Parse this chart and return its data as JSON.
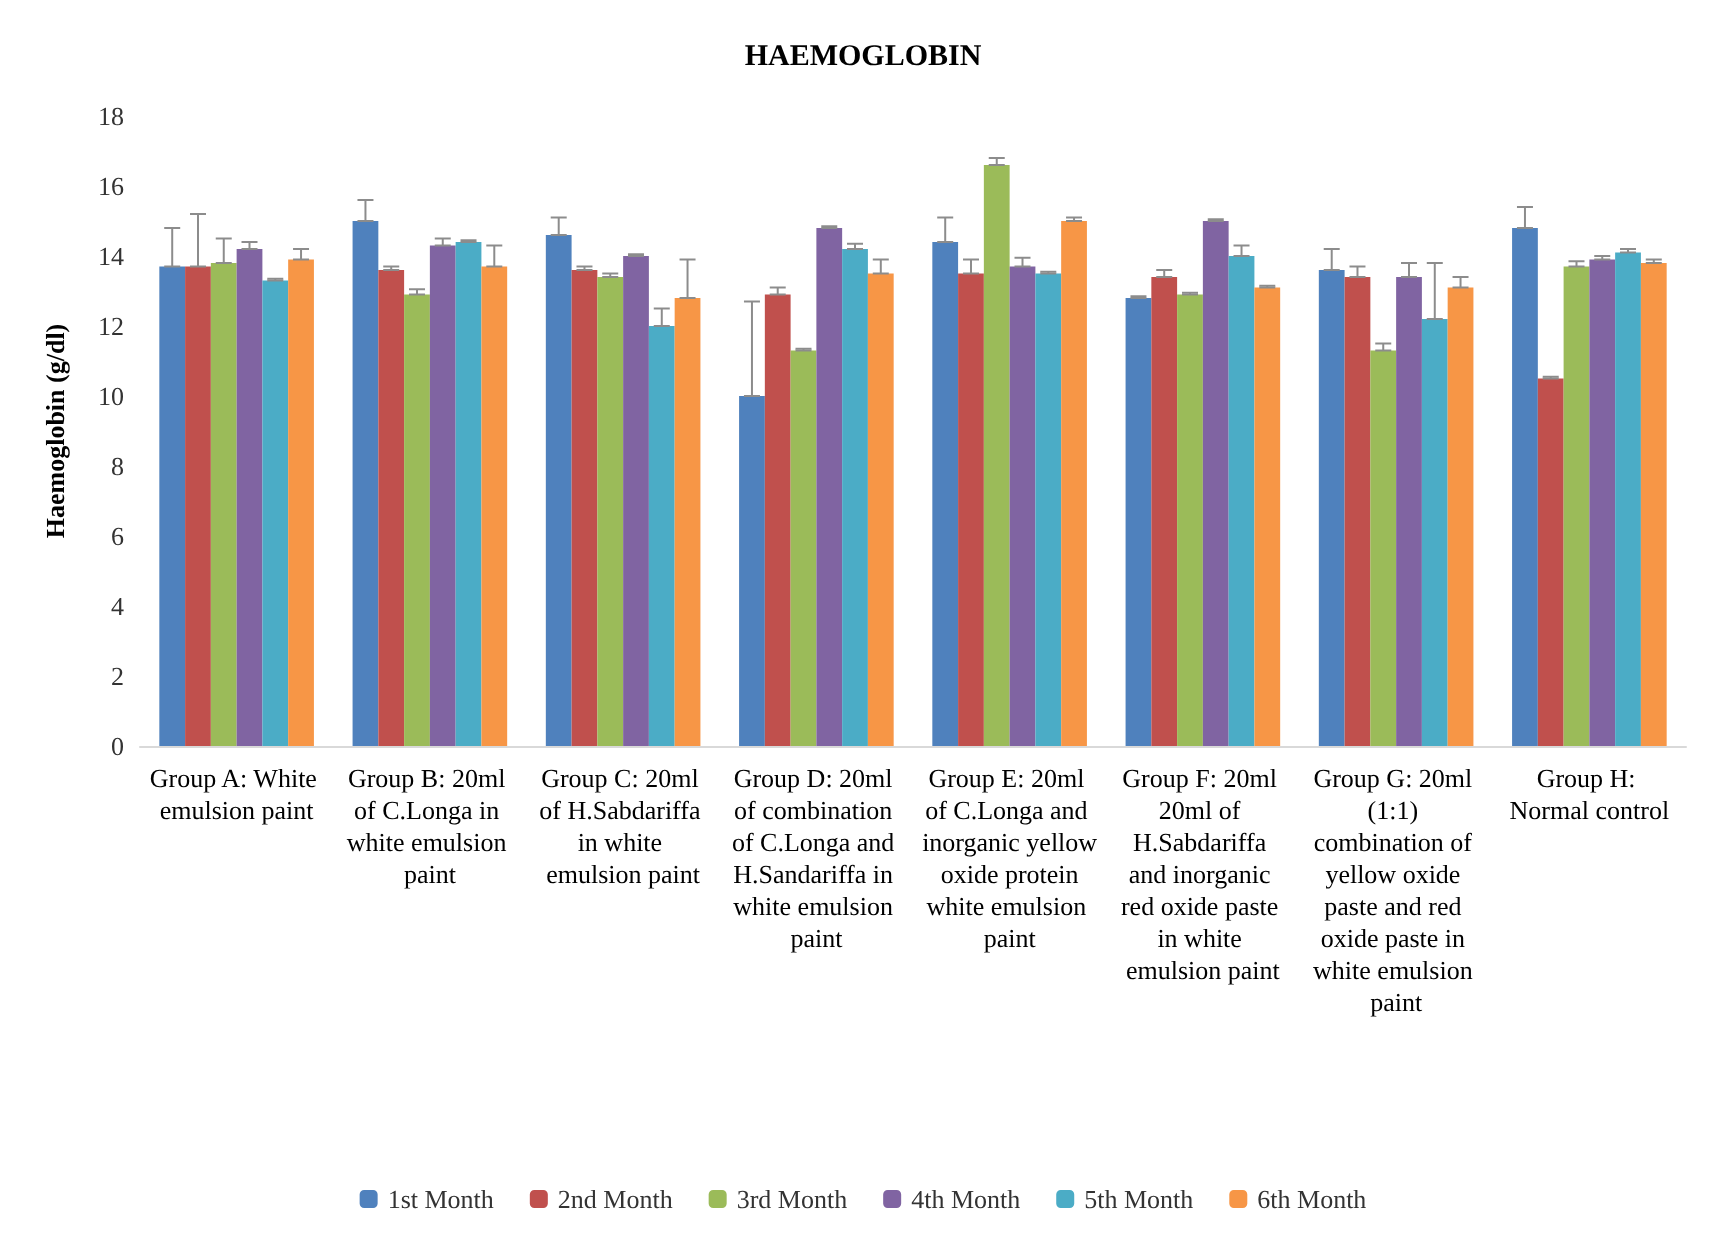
{
  "chart_data": {
    "type": "bar",
    "title": "HAEMOGLOBIN",
    "ylabel": "Haemoglobin (g/dl)",
    "categories": [
      "Group A: White emulsion paint",
      "Group B: 20ml of C.Longa in white emulsion paint",
      "Group C: 20ml of H.Sabdariffa in white emulsion paint",
      "Group D: 20ml of combination of C.Longa and H.Sandariffa in white emulsion paint",
      "Group E: 20ml of C.Longa and inorganic yellow oxide protein white emulsion paint",
      "Group F: 20ml 20ml of H.Sabdariffa and inorganic red oxide paste in white emulsion paint",
      "Group G: 20ml (1:1) combination of yellow oxide paste and red oxide paste in white emulsion paint",
      "Group H: Normal control"
    ],
    "series": [
      {
        "name": "1st Month",
        "color": "#4f81bd",
        "values": [
          13.7,
          15.0,
          14.6,
          10.0,
          14.4,
          12.8,
          13.6,
          14.8
        ],
        "errors": [
          [
            13.7,
            14.8
          ],
          [
            15.0,
            15.6
          ],
          [
            14.6,
            15.1
          ],
          [
            10.0,
            12.7
          ],
          [
            14.4,
            15.1
          ],
          [
            12.8,
            12.85
          ],
          [
            13.6,
            14.2
          ],
          [
            14.8,
            15.4
          ]
        ]
      },
      {
        "name": "2nd Month",
        "color": "#c0504d",
        "values": [
          13.7,
          13.6,
          13.6,
          12.9,
          13.5,
          13.4,
          13.4,
          10.5
        ],
        "errors": [
          [
            13.7,
            15.2
          ],
          [
            13.6,
            13.7
          ],
          [
            13.6,
            13.7
          ],
          [
            12.9,
            13.1
          ],
          [
            13.5,
            13.9
          ],
          [
            13.4,
            13.6
          ],
          [
            13.4,
            13.7
          ],
          [
            10.5,
            10.55
          ]
        ]
      },
      {
        "name": "3rd Month",
        "color": "#9bbb59",
        "values": [
          13.8,
          12.9,
          13.4,
          11.3,
          16.6,
          12.9,
          11.3,
          13.7
        ],
        "errors": [
          [
            13.8,
            14.5
          ],
          [
            12.9,
            13.05
          ],
          [
            13.4,
            13.5
          ],
          [
            11.3,
            11.35
          ],
          [
            16.6,
            16.8
          ],
          [
            12.9,
            12.95
          ],
          [
            11.3,
            11.5
          ],
          [
            13.7,
            13.85
          ]
        ]
      },
      {
        "name": "4th Month",
        "color": "#8064a2",
        "values": [
          14.2,
          14.3,
          14.0,
          14.8,
          13.7,
          15.0,
          13.4,
          13.9
        ],
        "errors": [
          [
            14.2,
            14.4
          ],
          [
            14.3,
            14.5
          ],
          [
            14.0,
            14.05
          ],
          [
            14.8,
            14.85
          ],
          [
            13.7,
            13.95
          ],
          [
            15.0,
            15.05
          ],
          [
            13.4,
            13.8
          ],
          [
            13.9,
            14.0
          ]
        ]
      },
      {
        "name": "5th Month",
        "color": "#4bacc6",
        "values": [
          13.3,
          14.4,
          12.0,
          14.2,
          13.5,
          14.0,
          12.2,
          14.1
        ],
        "errors": [
          [
            13.3,
            13.35
          ],
          [
            14.4,
            14.45
          ],
          [
            12.0,
            12.5
          ],
          [
            14.2,
            14.35
          ],
          [
            13.5,
            13.55
          ],
          [
            14.0,
            14.3
          ],
          [
            12.2,
            13.8
          ],
          [
            14.1,
            14.2
          ]
        ]
      },
      {
        "name": "6th Month",
        "color": "#f79646",
        "values": [
          13.9,
          13.7,
          12.8,
          13.5,
          15.0,
          13.1,
          13.1,
          13.8
        ],
        "errors": [
          [
            13.9,
            14.2
          ],
          [
            13.7,
            14.3
          ],
          [
            12.8,
            13.9
          ],
          [
            13.5,
            13.9
          ],
          [
            15.0,
            15.1
          ],
          [
            13.1,
            13.15
          ],
          [
            13.1,
            13.4
          ],
          [
            13.8,
            13.9
          ]
        ]
      }
    ],
    "ylim": [
      0,
      18
    ],
    "yticks": [
      0,
      2,
      4,
      6,
      8,
      10,
      12,
      14,
      16,
      18
    ],
    "grid": false,
    "legend": "bottom"
  }
}
